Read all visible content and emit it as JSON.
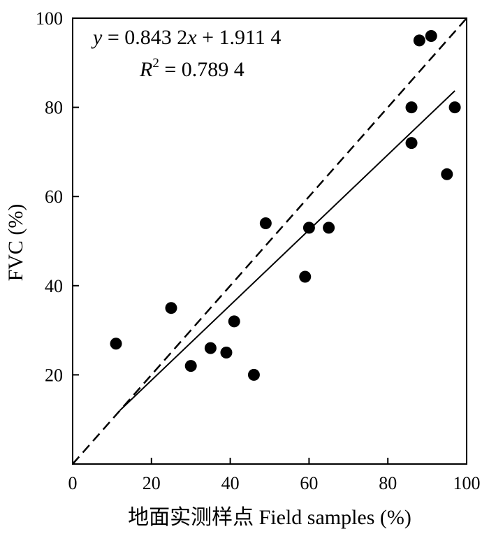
{
  "chart_data": {
    "type": "scatter",
    "xlabel": "地面实测样点 Field samples (%)",
    "ylabel": "FVC (%)",
    "xlim": [
      0,
      100
    ],
    "ylim": [
      0,
      100
    ],
    "x_ticks": [
      "0",
      "20",
      "40",
      "60",
      "80",
      "100"
    ],
    "y_ticks": [
      "20",
      "40",
      "60",
      "80",
      "100"
    ],
    "grid": false,
    "points": [
      {
        "x": 11,
        "y": 27
      },
      {
        "x": 25,
        "y": 35
      },
      {
        "x": 30,
        "y": 22
      },
      {
        "x": 35,
        "y": 26
      },
      {
        "x": 39,
        "y": 25
      },
      {
        "x": 41,
        "y": 32
      },
      {
        "x": 46,
        "y": 20
      },
      {
        "x": 49,
        "y": 54
      },
      {
        "x": 59,
        "y": 42
      },
      {
        "x": 60,
        "y": 53
      },
      {
        "x": 65,
        "y": 53
      },
      {
        "x": 86,
        "y": 80
      },
      {
        "x": 86,
        "y": 72
      },
      {
        "x": 88,
        "y": 95
      },
      {
        "x": 91,
        "y": 96
      },
      {
        "x": 95,
        "y": 65
      },
      {
        "x": 97,
        "y": 80
      }
    ],
    "fit_line": {
      "slope": 0.8432,
      "intercept": 1.9114,
      "x_range": [
        12,
        97
      ],
      "style": "solid"
    },
    "reference_line": {
      "slope": 1,
      "intercept": 0,
      "x_range": [
        0,
        100
      ],
      "style": "dashed"
    },
    "annotations": {
      "equation": {
        "prefix": "y",
        "body": " = 0.843 2",
        "var": "x",
        "suffix": " + 1.911 4"
      },
      "r_squared": {
        "prefix": "R",
        "sup": "2",
        "body": " = 0.789 4"
      }
    }
  }
}
